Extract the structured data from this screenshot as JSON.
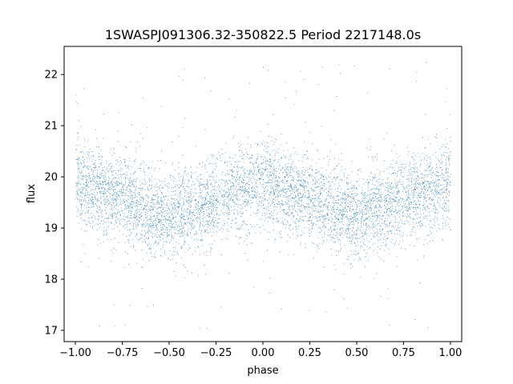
{
  "chart_data": {
    "type": "scatter",
    "title": "1SWASPJ091306.32-350822.5 Period 2217148.0s",
    "xlabel": "phase",
    "ylabel": "flux",
    "xlim": [
      -1.06,
      1.06
    ],
    "ylim": [
      16.78,
      22.55
    ],
    "xticks": [
      -1.0,
      -0.75,
      -0.5,
      -0.25,
      0.0,
      0.25,
      0.5,
      0.75,
      1.0
    ],
    "xtick_labels": [
      "−1.00",
      "−0.75",
      "−0.50",
      "−0.25",
      "0.00",
      "0.25",
      "0.50",
      "0.75",
      "1.00"
    ],
    "yticks": [
      17,
      18,
      19,
      20,
      21,
      22
    ],
    "ytick_labels": [
      "17",
      "18",
      "19",
      "20",
      "21",
      "22"
    ],
    "grid": false,
    "marker_color": "#1f77b4",
    "series": [
      {
        "profile_phase": [
          -1.0,
          -0.875,
          -0.75,
          -0.625,
          -0.5,
          -0.375,
          -0.25,
          -0.125,
          0.0,
          0.125,
          0.25,
          0.375,
          0.5,
          0.625,
          0.75,
          0.875,
          1.0
        ],
        "profile_flux": [
          19.9,
          19.7,
          19.6,
          19.4,
          19.2,
          19.35,
          19.55,
          19.75,
          19.9,
          19.75,
          19.55,
          19.4,
          19.2,
          19.35,
          19.6,
          19.7,
          19.9
        ],
        "scatter_sigma": 0.42
      }
    ]
  }
}
